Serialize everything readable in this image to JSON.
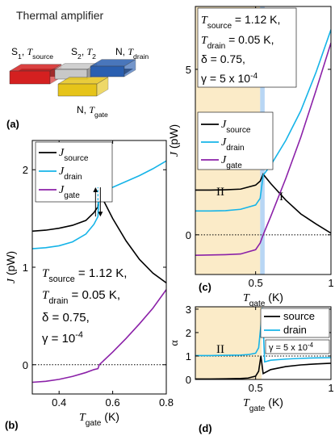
{
  "figure_title": "Thermal amplifier",
  "schematic": {
    "blocks": [
      {
        "name": "S1",
        "label_main": "S",
        "label_sub": "1",
        "temp_main": "T",
        "temp_sub": "source",
        "color": "#d42020"
      },
      {
        "name": "S2",
        "label_main": "S",
        "label_sub": "2",
        "temp_main": "T",
        "temp_sub": "2",
        "color": "#c8c8c8"
      },
      {
        "name": "N_drain",
        "label_main": "N",
        "temp_main": "T",
        "temp_sub": "drain",
        "color": "#2a5fb0"
      },
      {
        "name": "N_gate",
        "label_main": "N",
        "temp_main": "T",
        "temp_sub": "gate",
        "color": "#e6c419"
      }
    ]
  },
  "colors": {
    "source": "#000000",
    "drain": "#16b4e8",
    "gate": "#8b21a8",
    "shade": "#fbebc8",
    "band": "#b8d6f4"
  },
  "chart_data": [
    {
      "panel": "(b)",
      "type": "line",
      "xlabel_main": "T",
      "xlabel_sub": "gate",
      "xlabel_unit": "(K)",
      "ylabel": "J (pW)",
      "xlim": [
        0.3,
        0.8
      ],
      "ylim": [
        -0.3,
        2.3
      ],
      "xticks": [
        0.4,
        0.6,
        0.8
      ],
      "xtick_labels": [
        "0.4",
        "0.6",
        "0.8"
      ],
      "yticks": [
        0,
        1,
        2
      ],
      "ytick_labels": [
        "0",
        "1",
        "2"
      ],
      "legend": [
        {
          "main": "J",
          "sub": "source",
          "key": "source"
        },
        {
          "main": "J",
          "sub": "drain",
          "key": "drain"
        },
        {
          "main": "J",
          "sub": "gate",
          "key": "gate"
        }
      ],
      "params": [
        {
          "main": "T",
          "sub": "source",
          "rest": " = 1.12 K,"
        },
        {
          "main": "T",
          "sub": "drain",
          "rest": " = 0.05 K,"
        },
        {
          "main": "δ = 0.75,"
        },
        {
          "main": "γ = 10",
          "sup": "-4"
        }
      ],
      "series": [
        {
          "name": "J_source",
          "key": "source",
          "x": [
            0.3,
            0.35,
            0.4,
            0.45,
            0.5,
            0.53,
            0.545,
            0.55,
            0.6,
            0.65,
            0.7,
            0.75,
            0.8
          ],
          "y": [
            1.37,
            1.38,
            1.4,
            1.43,
            1.48,
            1.56,
            1.62,
            1.77,
            1.5,
            1.27,
            1.08,
            0.94,
            0.84
          ]
        },
        {
          "name": "J_drain",
          "key": "drain",
          "x": [
            0.3,
            0.35,
            0.4,
            0.45,
            0.5,
            0.53,
            0.545,
            0.55,
            0.6,
            0.65,
            0.7,
            0.75,
            0.8
          ],
          "y": [
            1.19,
            1.2,
            1.22,
            1.26,
            1.34,
            1.44,
            1.52,
            1.77,
            1.82,
            1.88,
            1.94,
            2.01,
            2.09
          ]
        },
        {
          "name": "J_gate",
          "key": "gate",
          "x": [
            0.3,
            0.35,
            0.4,
            0.45,
            0.5,
            0.53,
            0.545,
            0.55,
            0.6,
            0.65,
            0.7,
            0.75,
            0.8
          ],
          "y": [
            -0.18,
            -0.17,
            -0.15,
            -0.12,
            -0.08,
            -0.05,
            -0.04,
            0.0,
            0.13,
            0.27,
            0.42,
            0.58,
            0.77
          ]
        }
      ],
      "hysteresis_x": 0.545,
      "hysteresis_y": [
        1.52,
        1.82
      ]
    },
    {
      "panel": "(c)",
      "type": "line",
      "xlabel_main": "T",
      "xlabel_sub": "gate",
      "xlabel_unit": "(K)",
      "ylabel": "J (pW)",
      "xlim": [
        0.1,
        1.0
      ],
      "ylim": [
        -1.2,
        6.9
      ],
      "xticks": [
        0.5,
        1.0
      ],
      "xtick_labels": [
        "0.5",
        "1"
      ],
      "yticks": [
        0,
        5
      ],
      "ytick_labels": [
        "0",
        "5"
      ],
      "region_labels": [
        "II",
        "I"
      ],
      "legend": [
        {
          "main": "J",
          "sub": "source",
          "key": "source"
        },
        {
          "main": "J",
          "sub": "drain",
          "key": "drain"
        },
        {
          "main": "J",
          "sub": "gate",
          "key": "gate"
        }
      ],
      "params": [
        {
          "main": "T",
          "sub": "source",
          "rest": " = 1.12 K,"
        },
        {
          "main": "T",
          "sub": "drain",
          "rest": " = 0.05 K,"
        },
        {
          "main": "δ = 0.75,"
        },
        {
          "main": "γ = 5 x 10",
          "sup": "-4"
        }
      ],
      "series": [
        {
          "name": "J_source",
          "key": "source",
          "x": [
            0.1,
            0.2,
            0.3,
            0.4,
            0.5,
            0.53,
            0.55,
            0.6,
            0.7,
            0.8,
            0.9,
            1.0
          ],
          "y": [
            1.35,
            1.35,
            1.36,
            1.38,
            1.5,
            1.62,
            1.83,
            1.55,
            1.05,
            0.63,
            0.33,
            0.05
          ]
        },
        {
          "name": "J_drain",
          "key": "drain",
          "x": [
            0.1,
            0.2,
            0.3,
            0.4,
            0.5,
            0.53,
            0.55,
            0.6,
            0.7,
            0.8,
            0.9,
            1.0
          ],
          "y": [
            0.72,
            0.72,
            0.73,
            0.77,
            0.9,
            1.1,
            1.8,
            2.1,
            2.85,
            3.75,
            4.9,
            6.2
          ]
        },
        {
          "name": "J_gate",
          "key": "gate",
          "x": [
            0.1,
            0.2,
            0.3,
            0.4,
            0.5,
            0.53,
            0.55,
            0.6,
            0.7,
            0.8,
            0.9,
            1.0
          ],
          "y": [
            -0.62,
            -0.61,
            -0.6,
            -0.58,
            -0.45,
            -0.25,
            0.0,
            0.55,
            1.7,
            2.95,
            4.35,
            5.8
          ]
        }
      ],
      "shade_xlim": [
        0.1,
        0.53
      ],
      "band_xlim": [
        0.53,
        0.56
      ]
    },
    {
      "panel": "(d)",
      "type": "line",
      "xlabel_main": "T",
      "xlabel_sub": "gate",
      "xlabel_unit": "(K)",
      "ylabel": "α",
      "xlim": [
        0.1,
        1.0
      ],
      "ylim": [
        0,
        3.1
      ],
      "xticks": [
        0.5,
        1.0
      ],
      "xtick_labels": [
        "0.5",
        "1"
      ],
      "yticks": [
        0,
        1,
        2,
        3
      ],
      "ytick_labels": [
        "0",
        "1",
        "2",
        "3"
      ],
      "region_labels": [
        "II"
      ],
      "legend": [
        {
          "main": "source",
          "key": "source"
        },
        {
          "main": "drain",
          "key": "drain"
        }
      ],
      "params": [
        {
          "main": "γ = 5 x 10",
          "sup": "-4"
        }
      ],
      "series": [
        {
          "name": "source",
          "key": "source",
          "x": [
            0.1,
            0.2,
            0.3,
            0.4,
            0.45,
            0.5,
            0.52,
            0.535,
            0.55,
            0.6,
            0.7,
            0.8,
            0.9,
            1.0
          ],
          "y": [
            0.02,
            0.02,
            0.03,
            0.04,
            0.06,
            0.14,
            0.35,
            1.0,
            0.25,
            0.42,
            0.55,
            0.62,
            0.66,
            0.69
          ]
        },
        {
          "name": "drain",
          "key": "drain",
          "x": [
            0.1,
            0.2,
            0.3,
            0.4,
            0.45,
            0.5,
            0.52,
            0.535,
            0.545,
            0.56,
            0.6,
            0.7,
            0.8,
            0.9,
            1.0
          ],
          "y": [
            1.02,
            1.02,
            1.03,
            1.04,
            1.06,
            1.12,
            1.35,
            2.3,
            3.05,
            0.75,
            0.82,
            0.87,
            0.9,
            0.92,
            0.93
          ]
        }
      ],
      "shade_xlim": [
        0.1,
        0.54
      ]
    }
  ]
}
